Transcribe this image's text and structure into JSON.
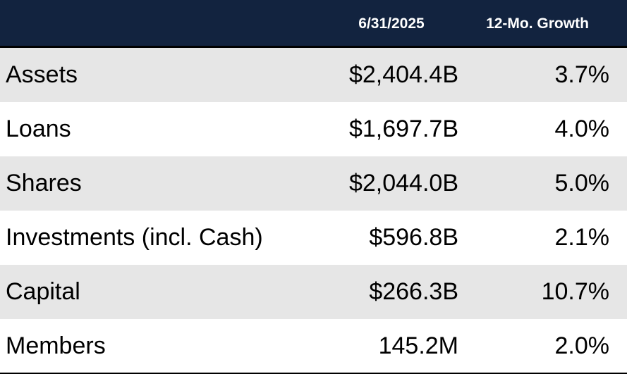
{
  "header": {
    "date_label": "6/31/2025",
    "growth_label": "12-Mo. Growth"
  },
  "rows": [
    {
      "label": "Assets",
      "value": "$2,404.4B",
      "growth": "3.7%"
    },
    {
      "label": "Loans",
      "value": "$1,697.7B",
      "growth": "4.0%"
    },
    {
      "label": "Shares",
      "value": "$2,044.0B",
      "growth": "5.0%"
    },
    {
      "label": "Investments (incl. Cash)",
      "value": "$596.8B",
      "growth": "2.1%"
    },
    {
      "label": "Capital",
      "value": "$266.3B",
      "growth": "10.7%"
    },
    {
      "label": "Members",
      "value": "145.2M",
      "growth": "2.0%"
    }
  ],
  "colors": {
    "header_bg": "#12233f",
    "shaded_row": "#e6e6e6"
  }
}
